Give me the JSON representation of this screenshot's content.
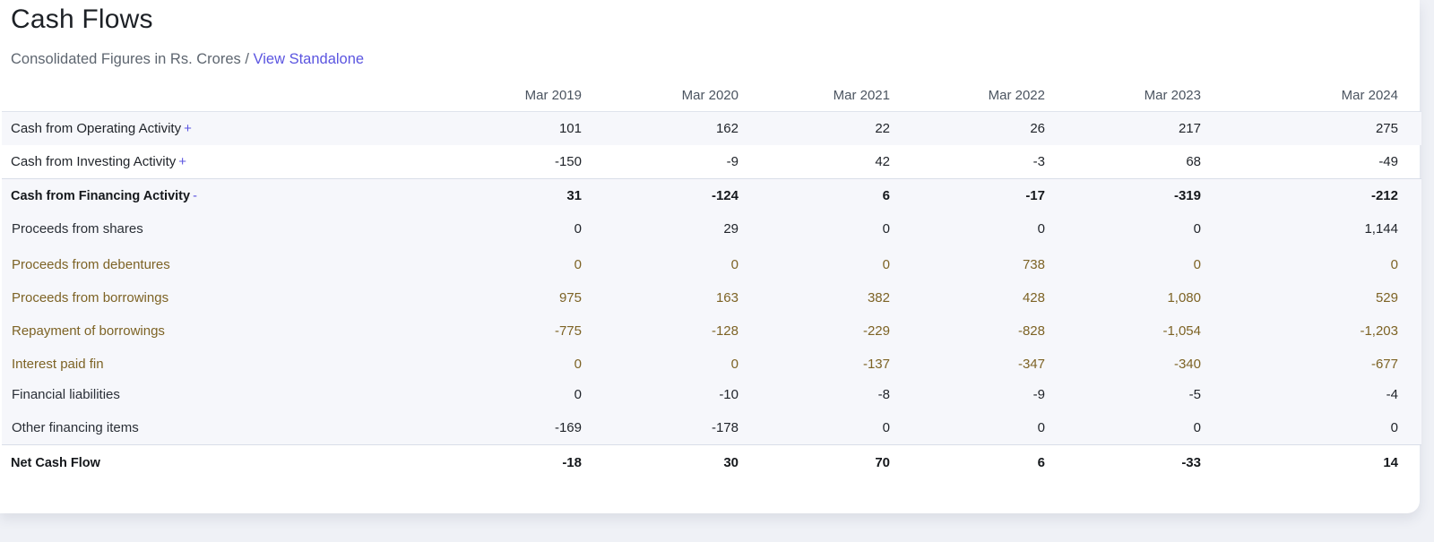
{
  "page": {
    "title": "Cash Flows",
    "subtitle_prefix": "Consolidated Figures in Rs. Crores /",
    "subtitle_link": "View Standalone"
  },
  "columns": [
    "Mar 2019",
    "Mar 2020",
    "Mar 2021",
    "Mar 2022",
    "Mar 2023",
    "Mar 2024"
  ],
  "rows_top": [
    {
      "label": "Cash from Operating Activity",
      "toggle": "+",
      "values": [
        "101",
        "162",
        "22",
        "26",
        "217",
        "275"
      ]
    },
    {
      "label": "Cash from Investing Activity",
      "toggle": "+",
      "values": [
        "-150",
        "-9",
        "42",
        "-3",
        "68",
        "-49"
      ]
    },
    {
      "label": "Cash from Financing Activity",
      "toggle": "-",
      "values": [
        "31",
        "-124",
        "6",
        "-17",
        "-319",
        "-212"
      ]
    },
    {
      "label": "Proceeds from shares",
      "values": [
        "0",
        "29",
        "0",
        "0",
        "0",
        "1,144"
      ]
    }
  ],
  "rows_highlighted": [
    {
      "label": "Proceeds from debentures",
      "values": [
        "0",
        "0",
        "0",
        "738",
        "0",
        "0"
      ]
    },
    {
      "label": "Proceeds from borrowings",
      "values": [
        "975",
        "163",
        "382",
        "428",
        "1,080",
        "529"
      ]
    },
    {
      "label": "Repayment of borrowings",
      "values": [
        "-775",
        "-128",
        "-229",
        "-828",
        "-1,054",
        "-1,203"
      ]
    },
    {
      "label": "Interest paid fin",
      "values": [
        "0",
        "0",
        "-137",
        "-347",
        "-340",
        "-677"
      ]
    }
  ],
  "rows_bottom": [
    {
      "label": "Financial liabilities",
      "values": [
        "0",
        "-10",
        "-8",
        "-9",
        "-5",
        "-4"
      ]
    },
    {
      "label": "Other financing items",
      "values": [
        "-169",
        "-178",
        "0",
        "0",
        "0",
        "0"
      ]
    },
    {
      "label": "Net Cash Flow",
      "values": [
        "-18",
        "30",
        "70",
        "6",
        "-33",
        "14"
      ]
    }
  ],
  "colors": {
    "highlight_fill": "#fbd796",
    "highlight_text": "#7d6325",
    "link": "#5b55e0"
  }
}
